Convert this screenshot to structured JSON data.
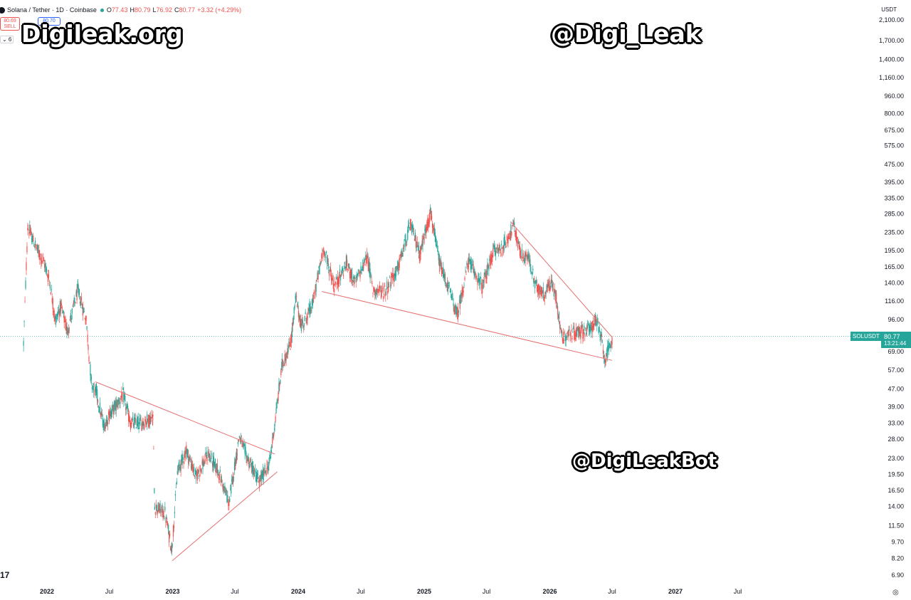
{
  "header": {
    "symbol_title": "Solana / Tether · 1D · Coinbase",
    "open_label": "O",
    "open": "77.43",
    "high_label": "H",
    "high": "80.79",
    "low_label": "L",
    "low": "76.92",
    "close_label": "C",
    "close": "80.77",
    "change": "+3.32 (+4.29%)"
  },
  "trade": {
    "sell_price": "80.69",
    "sell_label": "SELL",
    "buy_price": "80.70"
  },
  "indicator_chip": "⌄ 6",
  "watermarks": {
    "site": "Digileak.org",
    "handle": "@Digi_Leak",
    "bot": "@DigiLeakBot"
  },
  "price_scale": {
    "currency": "USDT",
    "symbol_tag": "SOLUSDT",
    "last_price": "80.77",
    "countdown": "13:21:44"
  },
  "logo_text": "17",
  "colors": {
    "up": "#26a69a",
    "down": "#ef5350",
    "trendline": "#e57373",
    "accent": "#26a69a"
  },
  "chart_data": {
    "type": "candlestick",
    "y_scale": "log",
    "ylim": [
      6.9,
      2100
    ],
    "y_ticks": [
      "2,100.00",
      "1,700.00",
      "1,400.00",
      "1,160.00",
      "960.00",
      "800.00",
      "675.00",
      "575.00",
      "475.00",
      "395.00",
      "335.00",
      "285.00",
      "235.00",
      "195.00",
      "165.00",
      "140.00",
      "116.00",
      "96.00",
      "69.00",
      "57.00",
      "47.00",
      "39.00",
      "33.00",
      "28.00",
      "23.00",
      "19.50",
      "16.50",
      "14.00",
      "11.50",
      "9.70",
      "8.20",
      "6.90"
    ],
    "x_ticks": [
      "2022",
      "Jul",
      "2023",
      "Jul",
      "2024",
      "Jul",
      "2025",
      "Jul",
      "2026",
      "Jul",
      "2027",
      "Jul"
    ],
    "x_tick_dates": [
      "2022-01-01",
      "2022-07-01",
      "2023-01-01",
      "2023-07-01",
      "2024-01-01",
      "2024-07-01",
      "2025-01-01",
      "2025-07-01",
      "2026-01-01",
      "2026-07-01",
      "2027-01-01",
      "2027-07-01"
    ],
    "last_price": 80.77,
    "series_path": [
      [
        "2021-10-25",
        75
      ],
      [
        "2021-11-06",
        250
      ],
      [
        "2021-11-20",
        220
      ],
      [
        "2021-12-05",
        195
      ],
      [
        "2021-12-25",
        170
      ],
      [
        "2022-01-10",
        140
      ],
      [
        "2022-01-25",
        95
      ],
      [
        "2022-02-10",
        110
      ],
      [
        "2022-03-01",
        85
      ],
      [
        "2022-04-01",
        130
      ],
      [
        "2022-04-25",
        95
      ],
      [
        "2022-05-10",
        50
      ],
      [
        "2022-05-25",
        45
      ],
      [
        "2022-06-15",
        32
      ],
      [
        "2022-07-01",
        36
      ],
      [
        "2022-08-10",
        44
      ],
      [
        "2022-09-01",
        33
      ],
      [
        "2022-10-01",
        33
      ],
      [
        "2022-11-05",
        35
      ],
      [
        "2022-11-10",
        14
      ],
      [
        "2022-12-10",
        13
      ],
      [
        "2022-12-30",
        9
      ],
      [
        "2023-01-15",
        20
      ],
      [
        "2023-02-10",
        25
      ],
      [
        "2023-03-10",
        19
      ],
      [
        "2023-04-15",
        24
      ],
      [
        "2023-05-15",
        20
      ],
      [
        "2023-06-14",
        14.5
      ],
      [
        "2023-07-14",
        29
      ],
      [
        "2023-08-01",
        24
      ],
      [
        "2023-09-10",
        18
      ],
      [
        "2023-10-10",
        22
      ],
      [
        "2023-10-25",
        33
      ],
      [
        "2023-11-15",
        60
      ],
      [
        "2023-12-10",
        75
      ],
      [
        "2023-12-25",
        120
      ],
      [
        "2024-01-10",
        90
      ],
      [
        "2024-02-10",
        110
      ],
      [
        "2024-03-15",
        200
      ],
      [
        "2024-04-15",
        135
      ],
      [
        "2024-05-20",
        170
      ],
      [
        "2024-06-15",
        140
      ],
      [
        "2024-07-20",
        185
      ],
      [
        "2024-08-05",
        130
      ],
      [
        "2024-09-07",
        128
      ],
      [
        "2024-10-15",
        160
      ],
      [
        "2024-11-22",
        255
      ],
      [
        "2024-12-20",
        190
      ],
      [
        "2025-01-19",
        290
      ],
      [
        "2025-02-15",
        170
      ],
      [
        "2025-03-15",
        130
      ],
      [
        "2025-04-07",
        100
      ],
      [
        "2025-05-10",
        175
      ],
      [
        "2025-06-20",
        135
      ],
      [
        "2025-07-22",
        195
      ],
      [
        "2025-08-15",
        200
      ],
      [
        "2025-09-18",
        250
      ],
      [
        "2025-10-10",
        185
      ],
      [
        "2025-11-01",
        180
      ],
      [
        "2025-11-21",
        135
      ],
      [
        "2025-12-15",
        125
      ],
      [
        "2026-01-05",
        140
      ],
      [
        "2026-01-20",
        120
      ],
      [
        "2026-02-05",
        80
      ],
      [
        "2026-03-01",
        83
      ],
      [
        "2026-04-01",
        85
      ],
      [
        "2026-05-01",
        88
      ],
      [
        "2026-05-15",
        96
      ],
      [
        "2026-06-01",
        78
      ],
      [
        "2026-06-10",
        64
      ],
      [
        "2026-06-25",
        72
      ],
      [
        "2026-07-02",
        80.77
      ]
    ],
    "trendlines": [
      {
        "from": [
          "2022-05-22",
          50.5
        ],
        "to": [
          "2023-10-25",
          24
        ]
      },
      {
        "from": [
          "2022-12-31",
          8
        ],
        "to": [
          "2023-11-01",
          20
        ]
      },
      {
        "from": [
          "2024-03-10",
          128
        ],
        "to": [
          "2026-07-01",
          63
        ]
      },
      {
        "from": [
          "2025-09-10",
          262
        ],
        "to": [
          "2026-07-01",
          80
        ]
      }
    ]
  }
}
